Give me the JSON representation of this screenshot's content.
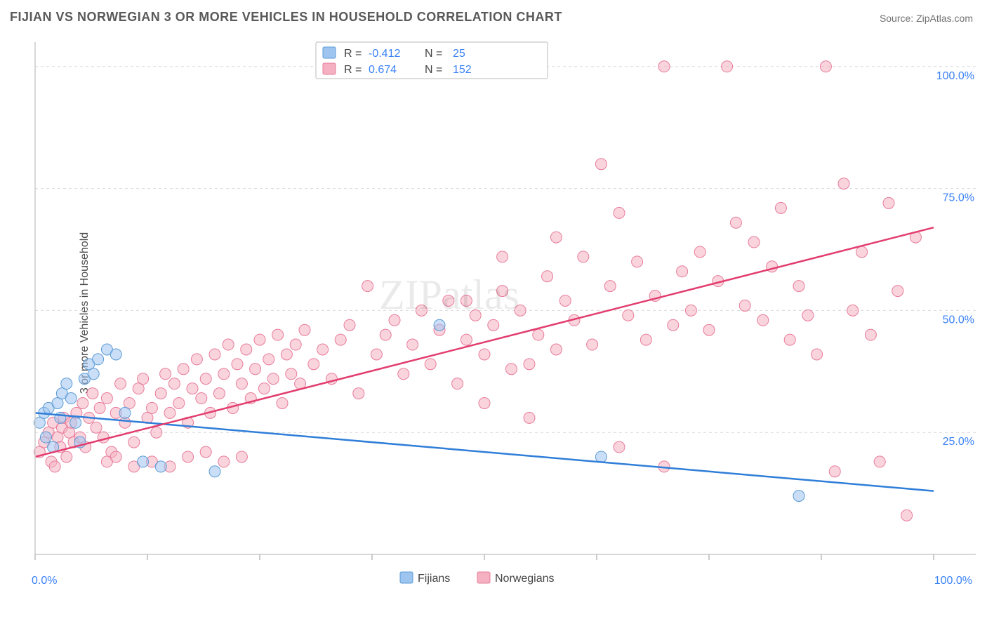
{
  "title": "FIJIAN VS NORWEGIAN 3 OR MORE VEHICLES IN HOUSEHOLD CORRELATION CHART",
  "source": "Source: ZipAtlas.com",
  "ylabel": "3 or more Vehicles in Household",
  "watermark": "ZIPatlas",
  "chart": {
    "type": "scatter",
    "background_color": "#ffffff",
    "grid_color": "#d9d9d9",
    "axis_color": "#cccccc",
    "tick_color": "#bbbbbb",
    "label_color": "#3b82f6",
    "xlim": [
      0,
      100
    ],
    "ylim": [
      0,
      105
    ],
    "x_ticks": [
      0,
      12.5,
      25,
      37.5,
      50,
      62.5,
      75,
      87.5,
      100
    ],
    "x_tick_labels": {
      "0": "0.0%",
      "100": "100.0%"
    },
    "y_ticks": [
      25,
      50,
      75,
      100
    ],
    "y_tick_labels": {
      "25": "25.0%",
      "50": "50.0%",
      "75": "75.0%",
      "100": "100.0%"
    },
    "marker_radius": 8,
    "marker_opacity": 0.55,
    "line_width": 2.5,
    "series": [
      {
        "name": "Fijians",
        "fill": "#9ec5f0",
        "stroke": "#5b9bd5",
        "line_color": "#2f7ed8",
        "R": "-0.412",
        "N": "25",
        "trend": {
          "x1": 0,
          "y1": 29,
          "x2": 100,
          "y2": 13
        },
        "points": [
          [
            0.5,
            27
          ],
          [
            1,
            29
          ],
          [
            1.2,
            24
          ],
          [
            1.5,
            30
          ],
          [
            2,
            22
          ],
          [
            2.5,
            31
          ],
          [
            2.8,
            28
          ],
          [
            3,
            33
          ],
          [
            3.5,
            35
          ],
          [
            4,
            32
          ],
          [
            4.5,
            27
          ],
          [
            5,
            23
          ],
          [
            5.5,
            36
          ],
          [
            6,
            39
          ],
          [
            6.5,
            37
          ],
          [
            7,
            40
          ],
          [
            8,
            42
          ],
          [
            9,
            41
          ],
          [
            10,
            29
          ],
          [
            12,
            19
          ],
          [
            14,
            18
          ],
          [
            20,
            17
          ],
          [
            45,
            47
          ],
          [
            63,
            20
          ],
          [
            85,
            12
          ]
        ]
      },
      {
        "name": "Norwegians",
        "fill": "#f5b0c1",
        "stroke": "#e77c9a",
        "line_color": "#e23d6e",
        "R": "0.674",
        "N": "152",
        "trend": {
          "x1": 0,
          "y1": 20,
          "x2": 100,
          "y2": 67
        },
        "points": [
          [
            0.5,
            21
          ],
          [
            1,
            23
          ],
          [
            1.5,
            25
          ],
          [
            1.8,
            19
          ],
          [
            2,
            27
          ],
          [
            2.2,
            18
          ],
          [
            2.5,
            24
          ],
          [
            2.8,
            22
          ],
          [
            3,
            26
          ],
          [
            3.2,
            28
          ],
          [
            3.5,
            20
          ],
          [
            3.8,
            25
          ],
          [
            4,
            27
          ],
          [
            4.3,
            23
          ],
          [
            4.6,
            29
          ],
          [
            5,
            24
          ],
          [
            5.3,
            31
          ],
          [
            5.6,
            22
          ],
          [
            6,
            28
          ],
          [
            6.4,
            33
          ],
          [
            6.8,
            26
          ],
          [
            7.2,
            30
          ],
          [
            7.6,
            24
          ],
          [
            8,
            32
          ],
          [
            8.5,
            21
          ],
          [
            9,
            29
          ],
          [
            9.5,
            35
          ],
          [
            10,
            27
          ],
          [
            10.5,
            31
          ],
          [
            11,
            23
          ],
          [
            11.5,
            34
          ],
          [
            12,
            36
          ],
          [
            12.5,
            28
          ],
          [
            13,
            30
          ],
          [
            13.5,
            25
          ],
          [
            14,
            33
          ],
          [
            14.5,
            37
          ],
          [
            15,
            29
          ],
          [
            15.5,
            35
          ],
          [
            16,
            31
          ],
          [
            16.5,
            38
          ],
          [
            17,
            27
          ],
          [
            17.5,
            34
          ],
          [
            18,
            40
          ],
          [
            18.5,
            32
          ],
          [
            19,
            36
          ],
          [
            19.5,
            29
          ],
          [
            20,
            41
          ],
          [
            20.5,
            33
          ],
          [
            21,
            37
          ],
          [
            21.5,
            43
          ],
          [
            22,
            30
          ],
          [
            22.5,
            39
          ],
          [
            23,
            35
          ],
          [
            23.5,
            42
          ],
          [
            24,
            32
          ],
          [
            24.5,
            38
          ],
          [
            25,
            44
          ],
          [
            25.5,
            34
          ],
          [
            26,
            40
          ],
          [
            26.5,
            36
          ],
          [
            27,
            45
          ],
          [
            27.5,
            31
          ],
          [
            28,
            41
          ],
          [
            28.5,
            37
          ],
          [
            29,
            43
          ],
          [
            29.5,
            35
          ],
          [
            30,
            46
          ],
          [
            31,
            39
          ],
          [
            32,
            42
          ],
          [
            33,
            36
          ],
          [
            34,
            44
          ],
          [
            35,
            47
          ],
          [
            36,
            33
          ],
          [
            37,
            55
          ],
          [
            38,
            41
          ],
          [
            39,
            45
          ],
          [
            40,
            48
          ],
          [
            41,
            37
          ],
          [
            42,
            43
          ],
          [
            43,
            50
          ],
          [
            44,
            39
          ],
          [
            45,
            46
          ],
          [
            46,
            52
          ],
          [
            47,
            35
          ],
          [
            48,
            44
          ],
          [
            49,
            49
          ],
          [
            50,
            41
          ],
          [
            51,
            47
          ],
          [
            52,
            54
          ],
          [
            53,
            38
          ],
          [
            54,
            50
          ],
          [
            55,
            39
          ],
          [
            56,
            45
          ],
          [
            57,
            57
          ],
          [
            58,
            42
          ],
          [
            59,
            52
          ],
          [
            60,
            48
          ],
          [
            61,
            61
          ],
          [
            62,
            43
          ],
          [
            63,
            80
          ],
          [
            64,
            55
          ],
          [
            65,
            70
          ],
          [
            66,
            49
          ],
          [
            67,
            60
          ],
          [
            68,
            44
          ],
          [
            69,
            53
          ],
          [
            70,
            100
          ],
          [
            71,
            47
          ],
          [
            72,
            58
          ],
          [
            73,
            50
          ],
          [
            74,
            62
          ],
          [
            75,
            46
          ],
          [
            76,
            56
          ],
          [
            77,
            100
          ],
          [
            78,
            68
          ],
          [
            79,
            51
          ],
          [
            80,
            64
          ],
          [
            81,
            48
          ],
          [
            82,
            59
          ],
          [
            83,
            71
          ],
          [
            84,
            44
          ],
          [
            85,
            55
          ],
          [
            86,
            49
          ],
          [
            87,
            41
          ],
          [
            88,
            100
          ],
          [
            89,
            17
          ],
          [
            90,
            76
          ],
          [
            91,
            50
          ],
          [
            92,
            62
          ],
          [
            93,
            45
          ],
          [
            94,
            19
          ],
          [
            95,
            72
          ],
          [
            96,
            54
          ],
          [
            97,
            8
          ],
          [
            98,
            65
          ],
          [
            70,
            18
          ],
          [
            65,
            22
          ],
          [
            55,
            28
          ],
          [
            50,
            31
          ],
          [
            48,
            52
          ],
          [
            52,
            61
          ],
          [
            58,
            65
          ],
          [
            8,
            19
          ],
          [
            9,
            20
          ],
          [
            11,
            18
          ],
          [
            13,
            19
          ],
          [
            15,
            18
          ],
          [
            17,
            20
          ],
          [
            19,
            21
          ],
          [
            21,
            19
          ],
          [
            23,
            20
          ]
        ]
      }
    ]
  },
  "top_legend": {
    "box_fill": "#ffffff",
    "box_stroke": "#bbbbbb",
    "R_label": "R =",
    "N_label": "N ="
  },
  "bottom_legend": {
    "items": [
      "Fijians",
      "Norwegians"
    ]
  }
}
